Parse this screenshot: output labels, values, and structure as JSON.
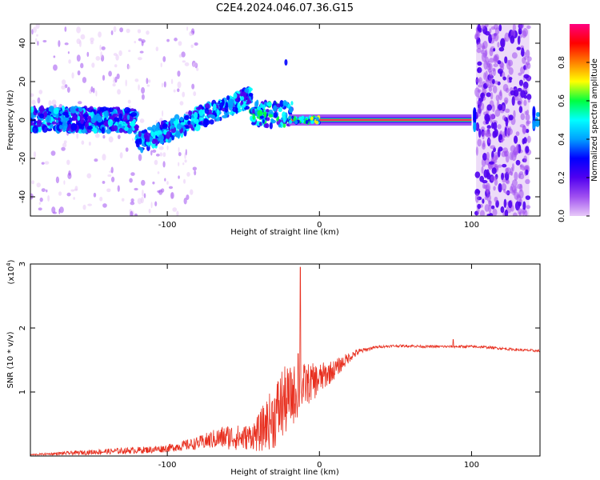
{
  "figure_title": "C2E4.2024.046.07.36.G15",
  "chart_data": [
    {
      "type": "heatmap",
      "xlabel": "Height of straight line (km)",
      "ylabel": "Frequency (Hz)",
      "xlim": [
        -190,
        145
      ],
      "ylim": [
        -50,
        50
      ],
      "xticks": [
        -100,
        0,
        100
      ],
      "yticks": [
        -40,
        -20,
        0,
        20,
        40
      ],
      "colorbar": {
        "label": "Normalized spectral amplitude",
        "range": [
          0,
          1
        ],
        "ticks": [
          "0.0",
          "0.2",
          "0.4",
          "0.6",
          "0.8"
        ],
        "colormap": [
          "#e8c8f8",
          "#a050f0",
          "#5000f0",
          "#0000ff",
          "#00a0ff",
          "#00ffff",
          "#00ff40",
          "#ffff00",
          "#ff8000",
          "#ff0000",
          "#ff0080"
        ]
      },
      "features": [
        {
          "name": "noisy band",
          "x": [
            -190,
            -120
          ],
          "freq_center": 0,
          "freq_spread": 6
        },
        {
          "name": "rising trace",
          "x": [
            -120,
            -45
          ],
          "freq_start": -12,
          "freq_end": 12
        },
        {
          "name": "stable tone",
          "x": [
            -20,
            100
          ],
          "freq": 0,
          "peak_amplitude": 1.0
        },
        {
          "name": "wideband noise",
          "x": [
            103,
            138
          ],
          "freq_range": [
            -50,
            50
          ]
        },
        {
          "name": "isolated spot",
          "x": -22,
          "freq": 30
        }
      ]
    },
    {
      "type": "line",
      "xlabel": "Height of straight line (km)",
      "ylabel": "SNR (10 * v/v)",
      "y_multiplier": "(x10",
      "y_multiplier_exp": "4",
      "xlim": [
        -190,
        145
      ],
      "ylim": [
        0,
        3
      ],
      "xticks": [
        -100,
        0,
        100
      ],
      "yticks": [
        1,
        2,
        3
      ],
      "color": "#e83020",
      "profile": {
        "x": [
          -190,
          -170,
          -150,
          -130,
          -110,
          -100,
          -90,
          -80,
          -70,
          -60,
          -50,
          -40,
          -35,
          -30,
          -25,
          -20,
          -15,
          -10,
          -5,
          0,
          5,
          10,
          15,
          20,
          25,
          30,
          35,
          40,
          50,
          60,
          70,
          80,
          90,
          100,
          110,
          120,
          130,
          145
        ],
        "y": [
          0.02,
          0.04,
          0.06,
          0.08,
          0.1,
          0.12,
          0.16,
          0.2,
          0.26,
          0.3,
          0.28,
          0.35,
          0.5,
          0.6,
          0.8,
          0.9,
          1.0,
          1.1,
          1.15,
          1.2,
          1.28,
          1.35,
          1.45,
          1.55,
          1.62,
          1.66,
          1.69,
          1.71,
          1.72,
          1.72,
          1.71,
          1.71,
          1.71,
          1.71,
          1.7,
          1.68,
          1.66,
          1.64
        ]
      },
      "noise_amplitude": {
        "x": [
          -190,
          -150,
          -100,
          -80,
          -60,
          -45,
          -35,
          -25,
          -20,
          -15,
          -10,
          0,
          10,
          20,
          30,
          40,
          145
        ],
        "y": [
          0.01,
          0.04,
          0.06,
          0.1,
          0.2,
          0.2,
          0.4,
          0.6,
          0.5,
          0.45,
          0.35,
          0.25,
          0.15,
          0.08,
          0.03,
          0.02,
          0.02
        ]
      },
      "spikes": [
        {
          "x": -12.5,
          "y": 2.95
        },
        {
          "x": -14,
          "y": 1.6
        },
        {
          "x": 88,
          "y": 1.82
        }
      ]
    }
  ]
}
